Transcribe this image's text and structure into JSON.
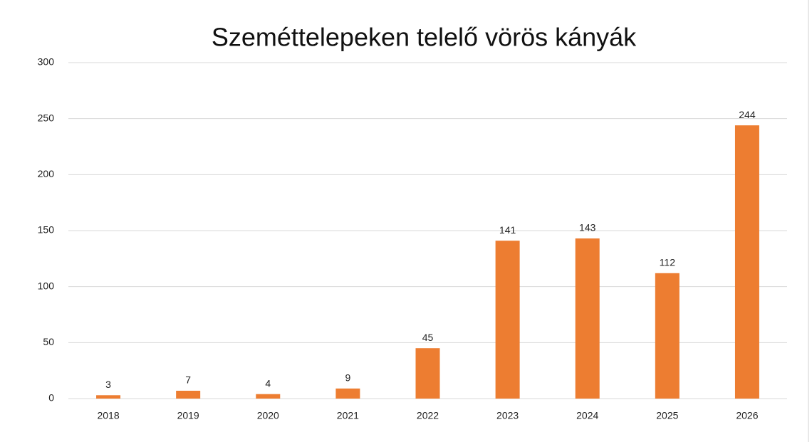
{
  "chart_data": {
    "type": "bar",
    "title": "Szeméttelepeken telelő vörös kányák",
    "categories": [
      "2018",
      "2019",
      "2020",
      "2021",
      "2022",
      "2023",
      "2024",
      "2025",
      "2026"
    ],
    "values": [
      3,
      7,
      4,
      9,
      45,
      141,
      143,
      112,
      244
    ],
    "color": "#ed7d31",
    "ylim": [
      0,
      300
    ],
    "yticks": [
      0,
      50,
      100,
      150,
      200,
      250,
      300
    ],
    "grid": true
  }
}
